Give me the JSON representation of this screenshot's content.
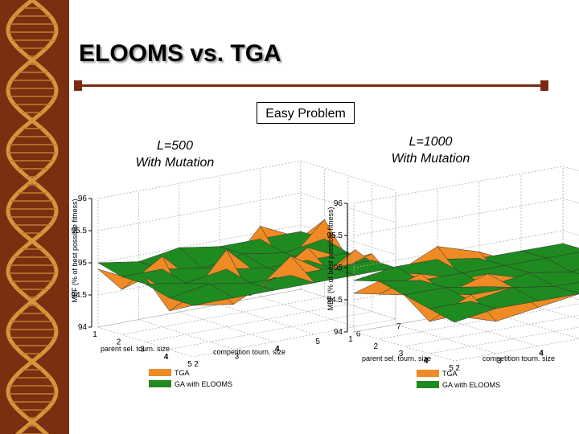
{
  "slide": {
    "title": "ELOOMS vs. TGA",
    "tag": "Easy Problem"
  },
  "panels": [
    {
      "line1": "L=500",
      "line2": "With Mutation"
    },
    {
      "line1": "L=1000",
      "line2": "With Mutation"
    }
  ],
  "colors": {
    "tga": "#f08a24",
    "elooms": "#1f8a1f",
    "dna_bg": "#7a2f10",
    "dna_helix": "#e0a040",
    "rule": "#7a2a10"
  },
  "chart_data": [
    {
      "type": "surface3d",
      "zlabel": "MBF (% of best possible fitness)",
      "xlabel": "parent sel. tourn. size",
      "ylabel": "competition tourn. size",
      "x_ticks": [
        "1",
        "2",
        "3",
        "4",
        "5"
      ],
      "y_ticks": [
        "2",
        "3",
        "4",
        "5",
        "6",
        "7"
      ],
      "z_ticks": [
        "94",
        "94.5",
        "95",
        "95.5",
        "96"
      ],
      "zlim": [
        94,
        96
      ],
      "series": [
        {
          "name": "TGA",
          "values": [
            [
              94.9,
              94.6,
              94.9,
              94.4,
              95.1,
              94.8
            ],
            [
              94.7,
              95.1,
              94.5,
              94.9,
              94.6,
              95.2
            ],
            [
              95.0,
              94.5,
              95.2,
              94.6,
              95.0,
              94.7
            ],
            [
              94.6,
              94.9,
              94.6,
              95.1,
              94.7,
              94.9
            ],
            [
              94.8,
              94.7,
              95.0,
              94.8,
              95.2,
              94.6
            ]
          ]
        },
        {
          "name": "GA with ELOOMS",
          "values": [
            [
              95.0,
              94.9,
              95.0,
              94.9,
              94.9,
              94.9
            ],
            [
              94.9,
              94.9,
              94.8,
              94.9,
              94.8,
              94.9
            ],
            [
              94.9,
              94.8,
              94.9,
              94.8,
              94.8,
              94.8
            ],
            [
              94.8,
              94.9,
              94.8,
              94.8,
              94.8,
              94.8
            ],
            [
              94.8,
              94.8,
              94.8,
              94.8,
              94.8,
              94.8
            ]
          ]
        }
      ]
    },
    {
      "type": "surface3d",
      "zlabel": "MBF (% of best possible fitness)",
      "xlabel": "parent sel. tourn. size",
      "ylabel": "competition tourn. size",
      "x_ticks": [
        "1",
        "2",
        "3",
        "4",
        "5"
      ],
      "y_ticks": [
        "2",
        "3",
        "4",
        "5",
        "6",
        "7"
      ],
      "z_ticks": [
        "94",
        "94.5",
        "95",
        "95.5",
        "96"
      ],
      "zlim": [
        94,
        96
      ],
      "series": [
        {
          "name": "TGA",
          "values": [
            [
              94.6,
              94.8,
              95.1,
              94.9,
              94.6,
              94.8
            ],
            [
              94.7,
              94.9,
              94.7,
              94.6,
              94.8,
              94.7
            ],
            [
              94.8,
              94.7,
              94.9,
              94.7,
              94.6,
              94.7
            ],
            [
              94.5,
              94.8,
              94.8,
              94.6,
              94.7,
              94.6
            ],
            [
              94.7,
              94.5,
              94.6,
              94.7,
              94.5,
              94.6
            ]
          ]
        },
        {
          "name": "GA with ELOOMS",
          "values": [
            [
              94.8,
              94.9,
              94.9,
              94.8,
              94.8,
              94.8
            ],
            [
              94.9,
              94.8,
              94.8,
              94.8,
              94.8,
              94.8
            ],
            [
              94.8,
              94.8,
              94.7,
              94.8,
              94.7,
              94.8
            ],
            [
              94.7,
              94.7,
              94.8,
              94.7,
              94.7,
              94.7
            ],
            [
              94.6,
              94.7,
              94.7,
              94.7,
              94.6,
              94.7
            ]
          ]
        }
      ]
    }
  ]
}
